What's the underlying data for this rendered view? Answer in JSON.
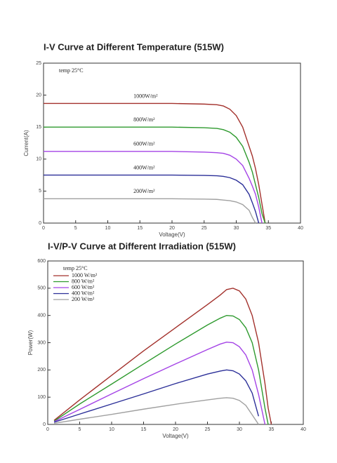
{
  "chart_data": [
    {
      "type": "line",
      "title": "I-V Curve at Different Temperature (515W)",
      "x_label": "Voltage(V)",
      "y_label": "Current(A)",
      "annotation": "temp  25°C",
      "xlim": [
        0,
        40
      ],
      "xticks": [
        0,
        5,
        10,
        15,
        20,
        25,
        30,
        35,
        40
      ],
      "ylim": [
        0,
        25
      ],
      "yticks": [
        0,
        5,
        10,
        15,
        20,
        25
      ],
      "grid": false,
      "legend": "curve-labels",
      "x": [
        0,
        5,
        10,
        15,
        20,
        25,
        27,
        28,
        29,
        30,
        31,
        32,
        32.5,
        33,
        33.5,
        34,
        34.5
      ],
      "series": [
        {
          "name": "1000W/m²",
          "color": "#a3312c",
          "values": [
            18.7,
            18.7,
            18.7,
            18.7,
            18.7,
            18.6,
            18.5,
            18.3,
            17.8,
            16.8,
            15,
            12,
            10.5,
            8.5,
            6,
            3,
            0
          ]
        },
        {
          "name": "800W/m²",
          "color": "#2e9a2e",
          "values": [
            15,
            15,
            15,
            15,
            15,
            14.9,
            14.8,
            14.6,
            14.2,
            13.4,
            12,
            9.5,
            8,
            6,
            4,
            1.5,
            0
          ]
        },
        {
          "name": "600W/m²",
          "color": "#a443e6",
          "values": [
            11.2,
            11.2,
            11.2,
            11.2,
            11.2,
            11.1,
            11,
            10.9,
            10.6,
            10,
            9,
            7,
            5.8,
            4.5,
            2.5,
            0,
            null
          ]
        },
        {
          "name": "400W/m²",
          "color": "#2b2f98",
          "values": [
            7.5,
            7.5,
            7.5,
            7.5,
            7.5,
            7.45,
            7.4,
            7.3,
            7.1,
            6.7,
            6,
            4.5,
            3.2,
            1.8,
            0,
            null,
            null
          ]
        },
        {
          "name": "200W/m²",
          "color": "#a0a0a0",
          "values": [
            3.8,
            3.8,
            3.8,
            3.8,
            3.8,
            3.75,
            3.7,
            3.6,
            3.5,
            3.3,
            2.9,
            2,
            0.9,
            0,
            null,
            null,
            null
          ]
        }
      ]
    },
    {
      "type": "line",
      "title": "I-V/P-V Curve at Different Irradiation (515W)",
      "x_label": "Voltage(V)",
      "y_label": "Power(W)",
      "annotation": "temp  25°C",
      "xlim": [
        0,
        40
      ],
      "xticks": [
        0,
        5,
        10,
        15,
        20,
        25,
        30,
        35,
        40
      ],
      "ylim": [
        0,
        600
      ],
      "yticks": [
        0,
        100,
        200,
        300,
        400,
        500,
        600
      ],
      "grid": false,
      "legend": "top-left",
      "x": [
        1,
        5,
        10,
        15,
        20,
        25,
        27,
        28,
        29,
        30,
        31,
        32,
        33,
        34,
        34.5,
        35
      ],
      "series": [
        {
          "name": "1000 W/m²",
          "color": "#a3312c",
          "values": [
            15,
            90,
            180,
            270,
            355,
            440,
            475,
            495,
            500,
            490,
            460,
            400,
            300,
            150,
            60,
            0
          ]
        },
        {
          "name": "800  W/m²",
          "color": "#2e9a2e",
          "values": [
            12,
            75,
            148,
            222,
            295,
            365,
            390,
            400,
            398,
            385,
            355,
            300,
            200,
            60,
            0,
            null
          ]
        },
        {
          "name": "600  W/m²",
          "color": "#a443e6",
          "values": [
            10,
            55,
            112,
            168,
            222,
            275,
            295,
            302,
            300,
            285,
            255,
            200,
            110,
            0,
            null,
            null
          ]
        },
        {
          "name": "400  W/m²",
          "color": "#2b2f98",
          "values": [
            8,
            38,
            75,
            112,
            150,
            185,
            196,
            200,
            197,
            185,
            160,
            115,
            30,
            null,
            null,
            null
          ]
        },
        {
          "name": "200  W/m²",
          "color": "#a0a0a0",
          "values": [
            4,
            19,
            37,
            56,
            74,
            90,
            96,
            98,
            96,
            88,
            70,
            35,
            0,
            null,
            null,
            null
          ]
        }
      ]
    }
  ]
}
